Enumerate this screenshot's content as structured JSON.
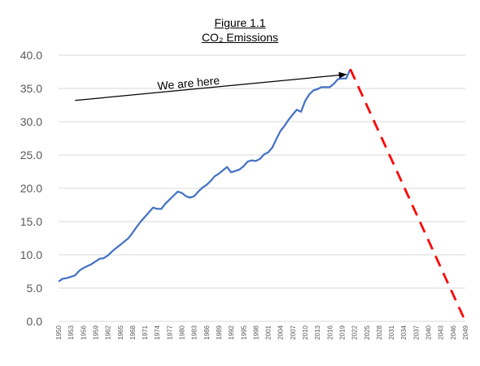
{
  "chart_data": {
    "type": "line",
    "title": "Figure 1.1",
    "subtitle": "CO₂ Emissions",
    "xlabel": "",
    "ylabel": "",
    "ylim": [
      0,
      40
    ],
    "y_ticks": [
      "0.0",
      "5.0",
      "10.0",
      "15.0",
      "20.0",
      "25.0",
      "30.0",
      "35.0",
      "40.0"
    ],
    "x_ticks": [
      "1950",
      "1953",
      "1956",
      "1959",
      "1962",
      "1965",
      "1968",
      "1971",
      "1974",
      "1977",
      "1980",
      "1983",
      "1986",
      "1989",
      "1992",
      "1995",
      "1998",
      "2001",
      "2004",
      "2007",
      "2010",
      "2013",
      "2016",
      "2019",
      "2022",
      "2025",
      "2028",
      "2031",
      "2034",
      "2037",
      "2040",
      "2043",
      "2046",
      "2049"
    ],
    "grid": "horizontal",
    "legend": "none",
    "series": [
      {
        "color": "#4472C4",
        "style": "solid",
        "x": [
          1950,
          1951,
          1952,
          1953,
          1954,
          1955,
          1956,
          1957,
          1958,
          1959,
          1960,
          1961,
          1962,
          1963,
          1964,
          1965,
          1966,
          1967,
          1968,
          1969,
          1970,
          1971,
          1972,
          1973,
          1974,
          1975,
          1976,
          1977,
          1978,
          1979,
          1980,
          1981,
          1982,
          1983,
          1984,
          1985,
          1986,
          1987,
          1988,
          1989,
          1990,
          1991,
          1992,
          1993,
          1994,
          1995,
          1996,
          1997,
          1998,
          1999,
          2000,
          2001,
          2002,
          2003,
          2004,
          2005,
          2006,
          2007,
          2008,
          2009,
          2010,
          2011,
          2012,
          2013,
          2014,
          2015,
          2016,
          2017,
          2018,
          2019,
          2020,
          2021
        ],
        "values": [
          6.0,
          6.4,
          6.5,
          6.7,
          6.9,
          7.6,
          8.0,
          8.3,
          8.6,
          9.0,
          9.4,
          9.5,
          9.9,
          10.5,
          11.0,
          11.5,
          12.0,
          12.5,
          13.3,
          14.2,
          15.0,
          15.7,
          16.4,
          17.1,
          16.9,
          16.9,
          17.7,
          18.3,
          18.9,
          19.5,
          19.3,
          18.8,
          18.6,
          18.8,
          19.5,
          20.1,
          20.5,
          21.1,
          21.8,
          22.2,
          22.7,
          23.2,
          22.4,
          22.6,
          22.8,
          23.3,
          24.0,
          24.2,
          24.1,
          24.4,
          25.1,
          25.4,
          26.1,
          27.4,
          28.6,
          29.4,
          30.3,
          31.1,
          31.8,
          31.5,
          33.1,
          34.1,
          34.7,
          34.9,
          35.2,
          35.2,
          35.2,
          35.7,
          36.4,
          36.5,
          36.5,
          37.9
        ]
      },
      {
        "color": "#FF0000",
        "style": "dashed",
        "x": [
          2021,
          2049
        ],
        "values": [
          37.9,
          0.0
        ]
      }
    ],
    "annotations": [
      {
        "text": "We are here",
        "arrow_from": [
          1954,
          33.2
        ],
        "arrow_to": [
          2020,
          37.1
        ]
      }
    ]
  }
}
